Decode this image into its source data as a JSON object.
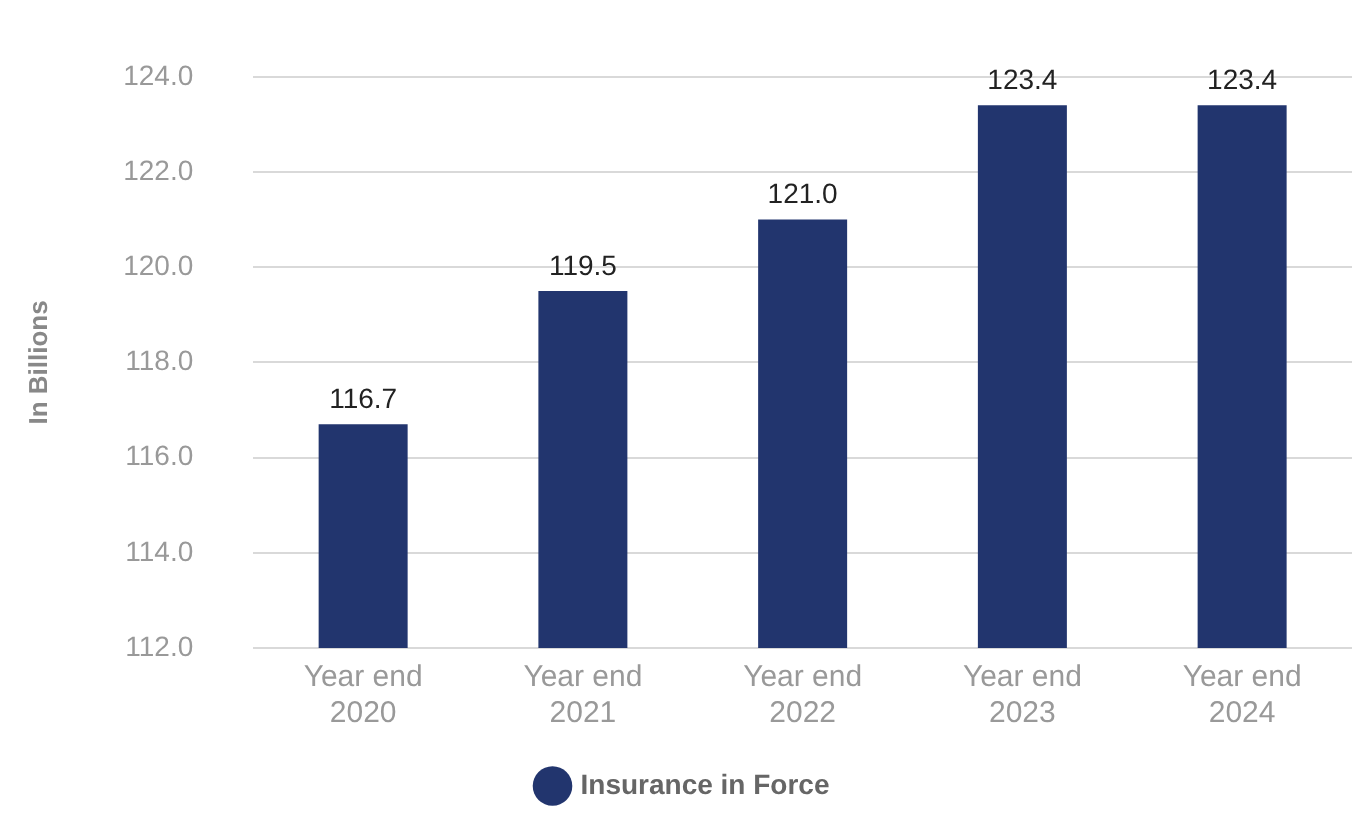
{
  "chart_data": {
    "type": "bar",
    "ylabel": "In Billions",
    "categories": [
      "Year end\n2020",
      "Year end\n2021",
      "Year end\n2022",
      "Year end\n2023",
      "Year end\n2024"
    ],
    "series": [
      {
        "name": "Insurance in Force",
        "color": "#22356e",
        "values": [
          116.7,
          119.5,
          121.0,
          123.4,
          123.4
        ]
      }
    ],
    "value_labels": [
      "116.7",
      "119.5",
      "121.0",
      "123.4",
      "123.4"
    ],
    "ylim": [
      112,
      124
    ],
    "yticks": [
      {
        "value": 112,
        "label": "112.0"
      },
      {
        "value": 114,
        "label": "114.0"
      },
      {
        "value": 116,
        "label": "116.0"
      },
      {
        "value": 118,
        "label": "118.0"
      },
      {
        "value": 120,
        "label": "120.0"
      },
      {
        "value": 122,
        "label": "122.0"
      },
      {
        "value": 124,
        "label": "124.0"
      }
    ],
    "grid": "y",
    "legend": "bottom"
  }
}
